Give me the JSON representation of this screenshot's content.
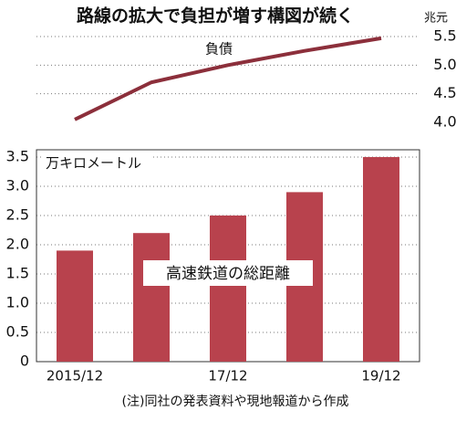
{
  "title": "路線の拡大で負担が増す構図が続く",
  "note": "(注)同社の発表資料や現地報道から作成",
  "chart_data": [
    {
      "type": "line",
      "label": "負債",
      "y_unit": "兆元",
      "color": "#8c2f3b",
      "values": [
        4.05,
        4.7,
        5.0,
        5.25,
        5.47
      ],
      "ylim": [
        4.0,
        5.5
      ],
      "yticks": [
        {
          "value": 4.0,
          "label": "4.0"
        },
        4.5,
        {
          "value": 5.0,
          "label": "5.0"
        },
        5.5
      ],
      "grid": true,
      "y_axis_side": "right"
    },
    {
      "type": "bar",
      "y_unit": "万キロメートル",
      "annotation": "高速鉄道の総距離",
      "color": "#b8424d",
      "categories": [
        "2015/12",
        null,
        "17/12",
        null,
        "19/12"
      ],
      "values": [
        1.9,
        2.2,
        2.5,
        2.9,
        3.5
      ],
      "ylim": [
        0,
        3.5
      ],
      "yticks": [
        0,
        0.5,
        {
          "value": 1,
          "label": "1.0"
        },
        1.5,
        {
          "value": 2,
          "label": "2.0"
        },
        2.5,
        {
          "value": 3,
          "label": "3.0"
        },
        3.5
      ],
      "grid": true,
      "y_axis_side": "left"
    }
  ]
}
